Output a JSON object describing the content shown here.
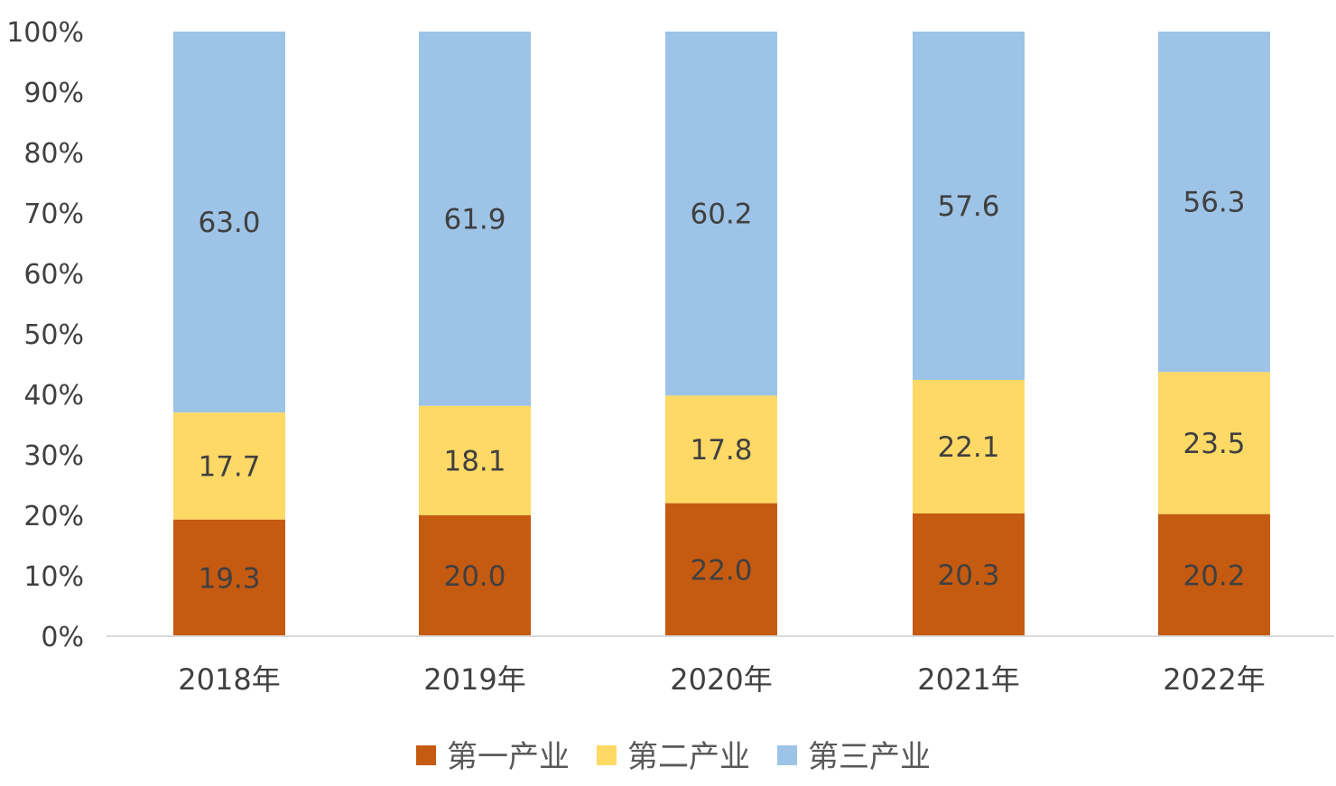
{
  "chart_data": {
    "type": "bar",
    "stacked": true,
    "percent_stacked": true,
    "categories": [
      "2018年",
      "2019年",
      "2020年",
      "2021年",
      "2022年"
    ],
    "series": [
      {
        "name": "第一产业",
        "values": [
          19.3,
          20.0,
          22.0,
          20.3,
          20.2
        ],
        "color": "#C55A11"
      },
      {
        "name": "第二产业",
        "values": [
          17.7,
          18.1,
          17.8,
          22.1,
          23.5
        ],
        "color": "#FFD966"
      },
      {
        "name": "第三产业",
        "values": [
          63.0,
          61.9,
          60.2,
          57.6,
          56.3
        ],
        "color": "#9DC3E6"
      }
    ],
    "yticks": [
      "0%",
      "10%",
      "20%",
      "30%",
      "40%",
      "50%",
      "60%",
      "70%",
      "80%",
      "90%",
      "100%"
    ],
    "ylim": [
      0,
      100
    ],
    "grid": false,
    "legend_position": "bottom",
    "title": "",
    "xlabel": "",
    "ylabel": ""
  }
}
